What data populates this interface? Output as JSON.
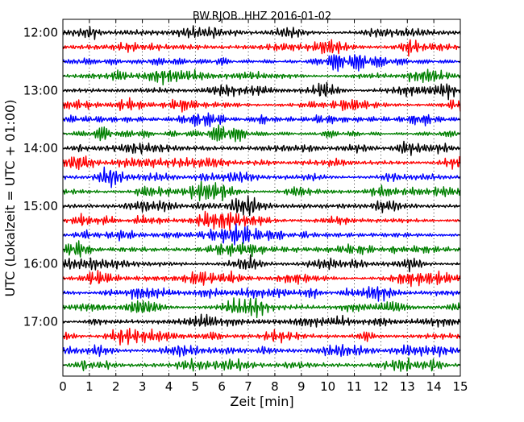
{
  "chart_data": {
    "type": "line",
    "subtype": "dayplot-seismogram",
    "title": "BW.RJOB..HHZ 2016-01-02",
    "xlabel": "Zeit  [min]",
    "ylabel": "UTC (Lokalzeit = UTC + 01:00)",
    "xlim": [
      0,
      15
    ],
    "x_ticks": [
      "0",
      "1",
      "2",
      "3",
      "4",
      "5",
      "6",
      "7",
      "8",
      "9",
      "10",
      "11",
      "12",
      "13",
      "14",
      "15"
    ],
    "y_tick_labels": [
      "12:00",
      "13:00",
      "14:00",
      "15:00",
      "16:00",
      "17:00"
    ],
    "grid": "vertical dotted at each minute",
    "colors": [
      "#000000",
      "#ff0000",
      "#0000ff",
      "#008000"
    ],
    "traces_per_hour": 4,
    "trace_count": 24,
    "legend": "none"
  }
}
